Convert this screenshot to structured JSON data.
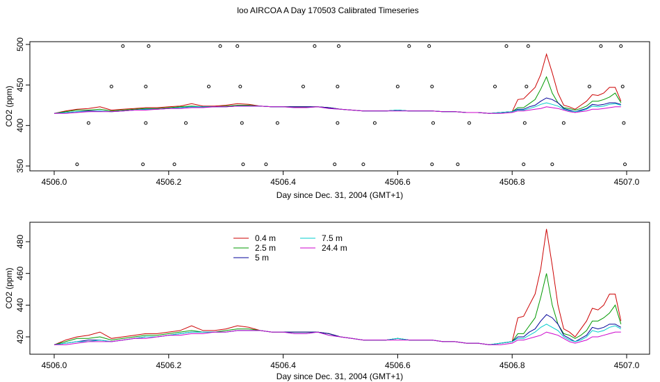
{
  "title": "loo AIRCOA A  Day 170503  Calibrated Timeseries",
  "chart_data": [
    {
      "type": "line",
      "xlabel": "Day since Dec. 31, 2004 (GMT+1)",
      "ylabel": "CO2 (ppm)",
      "xlim": [
        4506.0,
        4507.0
      ],
      "ylim": [
        350,
        500
      ],
      "x_ticks": [
        "4506.0",
        "4506.2",
        "4506.4",
        "4506.6",
        "4506.8",
        "4507.0"
      ],
      "y_ticks": [
        "350",
        "400",
        "450",
        "500"
      ],
      "grid": false,
      "x": [
        4506.0,
        4506.02,
        4506.04,
        4506.06,
        4506.08,
        4506.1,
        4506.12,
        4506.14,
        4506.16,
        4506.18,
        4506.2,
        4506.22,
        4506.24,
        4506.26,
        4506.28,
        4506.3,
        4506.32,
        4506.34,
        4506.36,
        4506.38,
        4506.4,
        4506.42,
        4506.44,
        4506.46,
        4506.48,
        4506.5,
        4506.52,
        4506.54,
        4506.56,
        4506.58,
        4506.6,
        4506.62,
        4506.64,
        4506.66,
        4506.68,
        4506.7,
        4506.72,
        4506.74,
        4506.76,
        4506.78,
        4506.8,
        4506.81,
        4506.82,
        4506.83,
        4506.84,
        4506.85,
        4506.86,
        4506.87,
        4506.88,
        4506.89,
        4506.9,
        4506.91,
        4506.92,
        4506.93,
        4506.94,
        4506.95,
        4506.96,
        4506.97,
        4506.98,
        4506.99
      ],
      "series": [
        {
          "name": "0.4 m",
          "color": "#cc0000",
          "values": [
            415,
            418,
            420,
            421,
            423,
            419,
            420,
            421,
            422,
            422,
            423,
            424,
            427,
            424,
            424,
            425,
            427,
            426,
            424,
            423,
            423,
            423,
            423,
            423,
            422,
            420,
            419,
            418,
            418,
            418,
            419,
            418,
            418,
            418,
            417,
            417,
            416,
            416,
            415,
            416,
            417,
            432,
            433,
            440,
            447,
            463,
            488,
            465,
            440,
            425,
            423,
            420,
            425,
            430,
            438,
            437,
            440,
            447,
            447,
            430
          ]
        },
        {
          "name": "2.5 m",
          "color": "#009900",
          "values": [
            415,
            417,
            419,
            419,
            420,
            418,
            419,
            420,
            421,
            421,
            422,
            423,
            424,
            423,
            423,
            424,
            425,
            425,
            424,
            423,
            423,
            423,
            423,
            423,
            422,
            420,
            419,
            418,
            418,
            418,
            419,
            418,
            418,
            418,
            417,
            417,
            416,
            416,
            415,
            416,
            417,
            422,
            422,
            427,
            432,
            445,
            460,
            440,
            428,
            422,
            421,
            419,
            421,
            424,
            430,
            430,
            432,
            435,
            440,
            428
          ]
        },
        {
          "name": "5 m",
          "color": "#000099",
          "values": [
            415,
            416,
            417,
            418,
            418,
            417,
            418,
            419,
            420,
            420,
            421,
            422,
            423,
            423,
            423,
            423,
            424,
            424,
            424,
            423,
            423,
            423,
            423,
            423,
            422,
            420,
            419,
            418,
            418,
            418,
            419,
            418,
            418,
            418,
            417,
            417,
            416,
            416,
            415,
            416,
            417,
            420,
            420,
            423,
            425,
            430,
            434,
            432,
            428,
            421,
            419,
            417,
            419,
            421,
            426,
            425,
            426,
            428,
            428,
            426
          ]
        },
        {
          "name": "7.5 m",
          "color": "#00cccc",
          "values": [
            415,
            416,
            417,
            417,
            418,
            417,
            418,
            419,
            420,
            420,
            421,
            422,
            423,
            423,
            423,
            423,
            424,
            424,
            424,
            423,
            423,
            422,
            422,
            423,
            421,
            420,
            419,
            418,
            418,
            418,
            419,
            418,
            418,
            418,
            417,
            417,
            416,
            416,
            415,
            416,
            417,
            419,
            419,
            421,
            423,
            426,
            428,
            426,
            424,
            420,
            418,
            417,
            418,
            420,
            424,
            423,
            424,
            426,
            427,
            425
          ]
        },
        {
          "name": "24.4 m",
          "color": "#cc00cc",
          "values": [
            415,
            415,
            416,
            417,
            417,
            417,
            418,
            419,
            419,
            420,
            421,
            421,
            422,
            422,
            423,
            423,
            424,
            424,
            424,
            423,
            423,
            422,
            422,
            423,
            421,
            420,
            419,
            418,
            418,
            418,
            418,
            418,
            418,
            418,
            417,
            417,
            416,
            416,
            415,
            415,
            416,
            418,
            418,
            419,
            420,
            421,
            423,
            422,
            421,
            419,
            417,
            416,
            417,
            418,
            420,
            420,
            421,
            422,
            423,
            423
          ]
        }
      ],
      "scatter_points": {
        "x": [
          4506.04,
          4506.06,
          4506.1,
          4506.12,
          4506.155,
          4506.16,
          4506.16,
          4506.165,
          4506.21,
          4506.23,
          4506.27,
          4506.29,
          4506.32,
          4506.325,
          4506.328,
          4506.33,
          4506.37,
          4506.39,
          4506.435,
          4506.455,
          4506.49,
          4506.495,
          4506.495,
          4506.497,
          4506.54,
          4506.56,
          4506.6,
          4506.62,
          4506.655,
          4506.66,
          4506.662,
          4506.66,
          4506.705,
          4506.725,
          4506.77,
          4506.79,
          4506.82,
          4506.822,
          4506.825,
          4506.828,
          4506.87,
          4506.89,
          4506.935,
          4506.955,
          4506.99,
          4506.993,
          4506.995,
          4506.997
        ],
        "y": [
          352,
          403,
          448,
          498,
          352,
          448,
          403,
          498,
          352,
          403,
          448,
          498,
          498,
          448,
          403,
          352,
          352,
          403,
          448,
          498,
          352,
          403,
          448,
          498,
          352,
          403,
          448,
          498,
          498,
          448,
          403,
          352,
          352,
          403,
          448,
          498,
          352,
          403,
          448,
          498,
          352,
          403,
          448,
          498,
          498,
          448,
          403,
          352
        ]
      }
    },
    {
      "type": "line",
      "xlabel": "Day since Dec. 31, 2004 (GMT+1)",
      "ylabel": "CO2 (ppm)",
      "xlim": [
        4506.0,
        4507.0
      ],
      "ylim": [
        412,
        492
      ],
      "x_ticks": [
        "4506.0",
        "4506.2",
        "4506.4",
        "4506.6",
        "4506.8",
        "4507.0"
      ],
      "y_ticks": [
        "420",
        "440",
        "460",
        "480"
      ],
      "grid": false,
      "legend_position": "top-left",
      "legend": [
        "0.4 m",
        "2.5 m",
        "5 m",
        "7.5 m",
        "24.4 m"
      ],
      "same_series_as_top": true
    }
  ]
}
